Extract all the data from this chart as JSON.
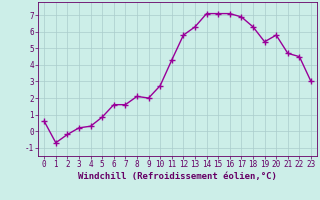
{
  "x": [
    0,
    1,
    2,
    3,
    4,
    5,
    6,
    7,
    8,
    9,
    10,
    11,
    12,
    13,
    14,
    15,
    16,
    17,
    18,
    19,
    20,
    21,
    22,
    23
  ],
  "y": [
    0.6,
    -0.7,
    -0.2,
    0.2,
    0.3,
    0.85,
    1.6,
    1.6,
    2.1,
    2.0,
    2.75,
    4.3,
    5.8,
    6.3,
    7.1,
    7.1,
    7.1,
    6.9,
    6.3,
    5.4,
    5.8,
    4.7,
    4.5,
    3.0
  ],
  "line_color": "#990099",
  "marker": "+",
  "marker_size": 4,
  "linewidth": 1.0,
  "bg_color": "#cceee8",
  "grid_color": "#aacccc",
  "xlabel": "Windchill (Refroidissement éolien,°C)",
  "ylabel": "",
  "xlim": [
    -0.5,
    23.5
  ],
  "ylim": [
    -1.5,
    7.8
  ],
  "yticks": [
    -1,
    0,
    1,
    2,
    3,
    4,
    5,
    6,
    7
  ],
  "xticks": [
    0,
    1,
    2,
    3,
    4,
    5,
    6,
    7,
    8,
    9,
    10,
    11,
    12,
    13,
    14,
    15,
    16,
    17,
    18,
    19,
    20,
    21,
    22,
    23
  ],
  "tick_color": "#660066",
  "label_color": "#660066",
  "xlabel_fontsize": 6.5,
  "tick_fontsize": 5.5,
  "markeredgewidth": 1.0
}
